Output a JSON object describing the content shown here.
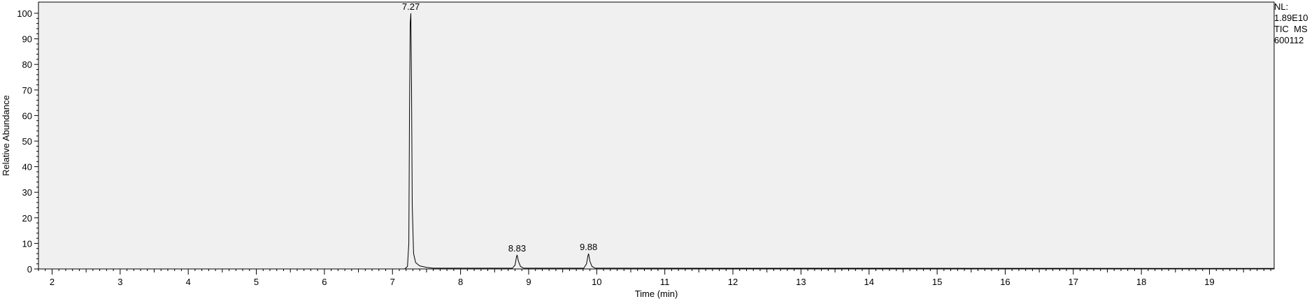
{
  "info": {
    "nl_label": "NL:",
    "nl_value": "1.89E10",
    "trace": "TIC  MS",
    "sample": "600112"
  },
  "chart_data": {
    "type": "line",
    "xlabel": "Time (min)",
    "ylabel": "Relative Abundance",
    "xlim": [
      1.8,
      19.95
    ],
    "ylim": [
      0,
      100
    ],
    "x_ticks": [
      2,
      3,
      4,
      5,
      6,
      7,
      8,
      9,
      10,
      11,
      12,
      13,
      14,
      15,
      16,
      17,
      18,
      19
    ],
    "y_ticks": [
      0,
      10,
      20,
      30,
      40,
      50,
      60,
      70,
      80,
      90,
      100
    ],
    "grid": false,
    "peaks": [
      {
        "label": "7.27",
        "rt": 7.27,
        "abundance": 100
      },
      {
        "label": "8.83",
        "rt": 8.83,
        "abundance": 5.5
      },
      {
        "label": "9.88",
        "rt": 9.88,
        "abundance": 6
      }
    ],
    "series": [
      {
        "x": [
          1.8,
          7.18,
          7.22,
          7.24,
          7.25,
          7.26,
          7.27,
          7.28,
          7.29,
          7.31,
          7.34,
          7.4,
          7.5,
          7.6,
          8.76,
          8.8,
          8.82,
          8.83,
          8.85,
          8.88,
          8.93,
          9.81,
          9.85,
          9.87,
          9.88,
          9.9,
          9.93,
          9.98,
          19.95
        ],
        "y": [
          0,
          0,
          1,
          10,
          62,
          96,
          100,
          70,
          25,
          6,
          2.5,
          1.2,
          0.6,
          0.3,
          0.3,
          1.5,
          4.5,
          5.5,
          3,
          1,
          0.3,
          0.3,
          2,
          5,
          6,
          3,
          1,
          0.3,
          0.2
        ]
      }
    ]
  }
}
